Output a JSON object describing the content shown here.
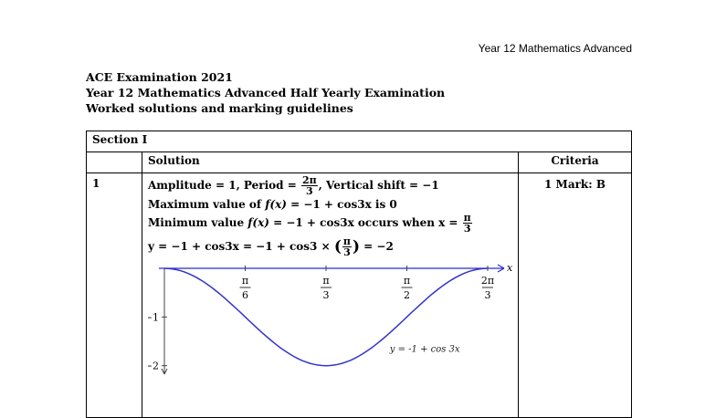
{
  "header": {
    "right": "Year 12 Mathematics Advanced"
  },
  "titles": {
    "line1": "ACE Examination 2021",
    "line2": "Year 12 Mathematics Advanced Half Yearly Examination",
    "line3": "Worked solutions and marking guidelines"
  },
  "table": {
    "section": "Section I",
    "solution_header": "Solution",
    "criteria_header": "Criteria",
    "question_number": "1",
    "criteria_value": "1 Mark: B",
    "solution": {
      "l1_a": "Amplitude = 1, Period = ",
      "l1_num": "2π",
      "l1_den": "3",
      "l1_b": ", Vertical shift = −1",
      "l2_a": "Maximum value of ",
      "l2_fx": "f(x)",
      "l2_b": " = −1 + cos3x is 0",
      "l3_a": "Minimum value ",
      "l3_fx": "f(x)",
      "l3_b": " = −1 + cos3x occurs when x = ",
      "l3_num": "π",
      "l3_den": "3",
      "l4_a": "y = −1 + cos3x = −1 + cos3 × ",
      "l4_num": "π",
      "l4_den": "3",
      "l4_b": " = −2"
    }
  },
  "chart_data": {
    "type": "line",
    "series": [
      {
        "name": "y = -1 + cos 3x",
        "x": [
          0,
          0.0873,
          0.1745,
          0.2618,
          0.3491,
          0.4363,
          0.5236,
          0.6109,
          0.6981,
          0.7854,
          0.8727,
          0.9599,
          1.0472,
          1.1345,
          1.2217,
          1.309,
          1.3963,
          1.4835,
          1.5708,
          1.6581,
          1.7453,
          1.8326,
          1.9199,
          2.0071,
          2.0944
        ],
        "y": [
          0,
          -0.034,
          -0.134,
          -0.293,
          -0.5,
          -0.741,
          -1.0,
          -1.259,
          -1.5,
          -1.707,
          -1.866,
          -1.966,
          -2.0,
          -1.966,
          -1.866,
          -1.707,
          -1.5,
          -1.259,
          -1.0,
          -0.741,
          -0.5,
          -0.293,
          -0.134,
          -0.034,
          0
        ]
      }
    ],
    "x_ticks": [
      {
        "value": 0.5236,
        "num": "π",
        "den": "6"
      },
      {
        "value": 1.0472,
        "num": "π",
        "den": "3"
      },
      {
        "value": 1.5708,
        "num": "π",
        "den": "2"
      },
      {
        "value": 2.0944,
        "num": "2π",
        "den": "3"
      }
    ],
    "y_ticks": [
      {
        "value": -1,
        "label": "−1"
      },
      {
        "value": -2,
        "label": "−2"
      }
    ],
    "xlabel": "x",
    "ylabel": "",
    "xlim": [
      0,
      2.0944
    ],
    "ylim": [
      -2.1,
      0
    ],
    "curve_label": "y = -1 + cos 3x",
    "line_color": "#3333cc",
    "axis_color": "#2b2bd0"
  }
}
